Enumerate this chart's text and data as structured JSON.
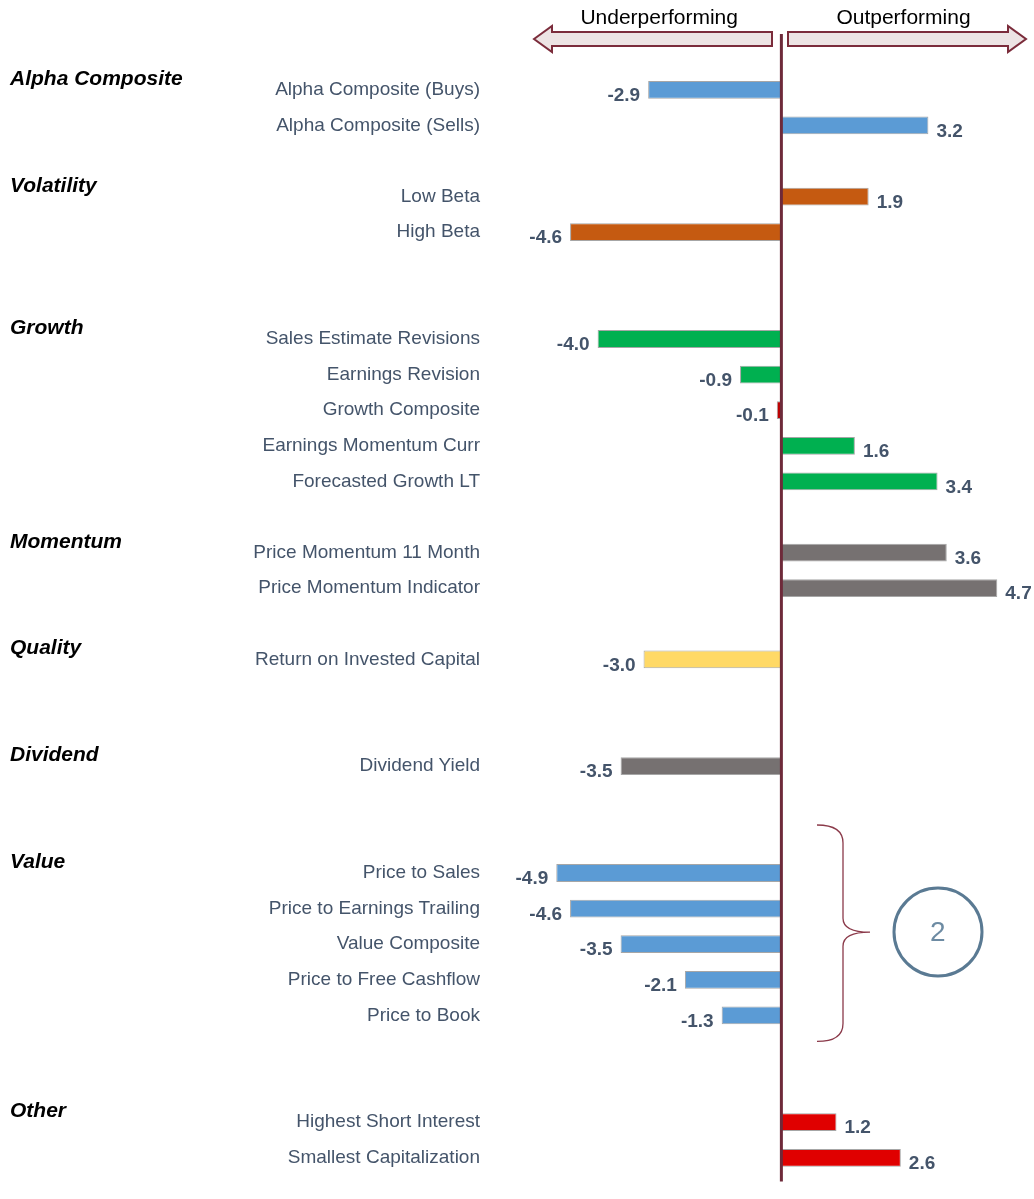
{
  "chart_data": {
    "type": "bar",
    "orientation": "horizontal",
    "categories": [
      "Alpha Composite (Buys)",
      "Alpha Composite (Sells)",
      null,
      "Low Beta",
      "High Beta",
      null,
      null,
      "Sales Estimate Revisions",
      "Earnings Revision",
      "Growth Composite",
      "Earnings Momentum Curr",
      "Forecasted Growth LT",
      null,
      "Price Momentum 11 Month",
      "Price Momentum Indicator",
      null,
      "Return on Invested Capital",
      null,
      null,
      "Dividend Yield",
      null,
      null,
      "Price to Sales",
      "Price to Earnings Trailing",
      "Value Composite",
      "Price to Free Cashflow",
      "Price to Book",
      null,
      null,
      "Highest Short Interest",
      "Smallest Capitalization"
    ],
    "values": [
      -2.9,
      3.2,
      null,
      1.9,
      -4.6,
      null,
      null,
      -4.0,
      -0.9,
      -0.1,
      1.6,
      3.4,
      null,
      3.6,
      4.7,
      null,
      -3.0,
      null,
      null,
      -3.5,
      null,
      null,
      -4.9,
      -4.6,
      -3.5,
      -2.1,
      -1.3,
      null,
      null,
      1.2,
      2.6
    ],
    "value_labels": [
      "-2.9",
      "3.2",
      null,
      "1.9",
      "-4.6",
      null,
      null,
      "-4.0",
      "-0.9",
      "-0.1",
      "1.6",
      "3.4",
      null,
      "3.6",
      "4.7",
      null,
      "-3.0",
      null,
      null,
      "-3.5",
      null,
      null,
      "-4.9",
      "-4.6",
      "-3.5",
      "-2.1",
      "-1.3",
      null,
      null,
      "1.2",
      "2.6"
    ],
    "colors": [
      "#5b9bd5",
      "#5b9bd5",
      null,
      "#c55a11",
      "#c55a11",
      null,
      null,
      "#00b050",
      "#00b050",
      "#c00000",
      "#00b050",
      "#00b050",
      null,
      "#767171",
      "#767171",
      null,
      "#ffd966",
      null,
      null,
      "#767171",
      null,
      null,
      "#5b9bd5",
      "#5b9bd5",
      "#5b9bd5",
      "#5b9bd5",
      "#5b9bd5",
      null,
      null,
      "#e00000",
      "#e00000"
    ],
    "ref_lines": [
      {
        "axis": "x",
        "value": 0,
        "color": "#6e2a3a"
      }
    ],
    "annotations": [
      "Underperforming",
      "Outperforming",
      "2",
      "Alpha Composite",
      "Volatility",
      "Growth",
      "Momentum",
      "Quality",
      "Dividend",
      "Value",
      "Other"
    ],
    "grid": false,
    "legend": false
  }
}
